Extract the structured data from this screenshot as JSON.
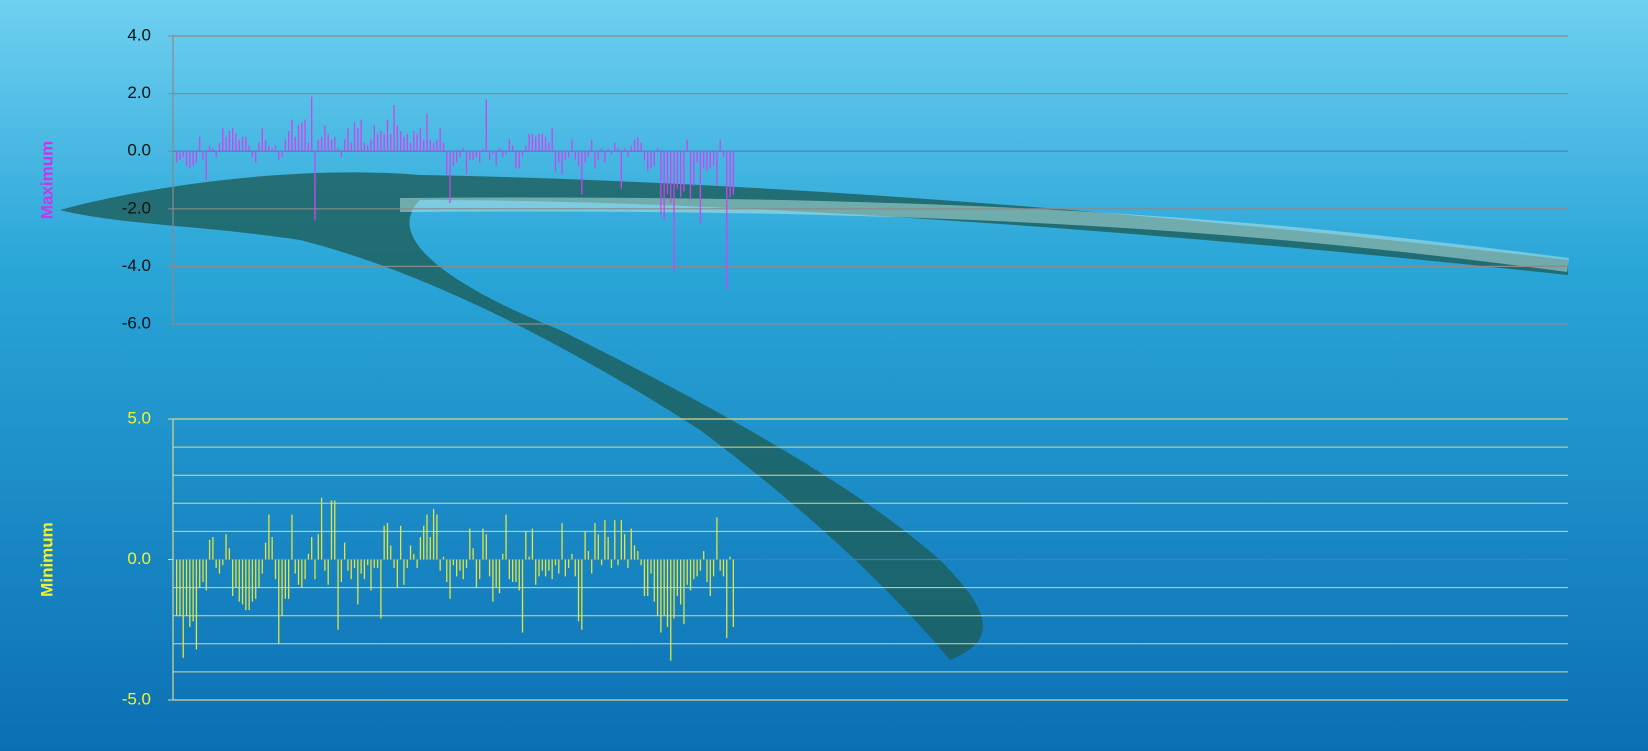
{
  "chart_data": [
    {
      "type": "bar",
      "ylabel": "Maximum",
      "color": "#cc44ee",
      "label_color": "#111111",
      "grid": true,
      "grid_color": "#8a8a8a",
      "ylim": [
        -6,
        4
      ],
      "yticks": [
        {
          "value": 4,
          "label": "4.0"
        },
        {
          "value": 2,
          "label": "2.0"
        },
        {
          "value": 0,
          "label": "0.0"
        },
        {
          "value": -2,
          "label": "-2.0"
        },
        {
          "value": -4,
          "label": "-4.0"
        },
        {
          "value": -6,
          "label": "-6.0"
        }
      ],
      "values": [
        -0.4,
        -0.3,
        -0.2,
        -0.5,
        -0.6,
        -0.5,
        -0.4,
        0.5,
        -0.3,
        -1.0,
        0.2,
        0.1,
        -0.2,
        0.3,
        0.8,
        0.5,
        0.7,
        0.8,
        0.6,
        0.4,
        0.5,
        0.5,
        0.2,
        -0.2,
        -0.4,
        0.3,
        0.8,
        0.4,
        0.2,
        0.1,
        0.2,
        -0.3,
        -0.2,
        0.4,
        0.7,
        1.1,
        0.5,
        0.9,
        1.0,
        1.1,
        0.3,
        1.9,
        -2.4,
        0.4,
        0.5,
        0.9,
        0.6,
        0.4,
        0.5,
        0.1,
        -0.2,
        0.4,
        0.8,
        0.3,
        1.0,
        0.8,
        1.1,
        0.3,
        0.2,
        0.4,
        0.9,
        0.6,
        0.7,
        0.6,
        1.1,
        0.6,
        1.6,
        0.9,
        0.7,
        0.5,
        0.6,
        0.3,
        0.7,
        0.6,
        0.8,
        0.4,
        1.3,
        0.4,
        0.3,
        0.4,
        0.8,
        0.3,
        -0.8,
        -1.8,
        -0.5,
        -0.4,
        -0.2,
        0.1,
        -0.8,
        -0.3,
        -0.3,
        -0.2,
        -0.4,
        0.1,
        1.8,
        -0.3,
        -0.1,
        -0.5,
        0.1,
        -0.2,
        -0.1,
        0.4,
        0.2,
        -0.6,
        -0.6,
        -0.2,
        0.2,
        0.6,
        0.6,
        0.5,
        0.6,
        0.6,
        0.5,
        0.3,
        0.8,
        -0.7,
        -0.4,
        -0.8,
        -0.3,
        -0.2,
        0.4,
        -0.3,
        -0.5,
        -1.5,
        -0.4,
        -0.2,
        0.4,
        -0.6,
        -0.3,
        0.1,
        -0.4,
        0.1,
        -0.1,
        0.3,
        0.1,
        -1.3,
        0.1,
        -0.2,
        0.2,
        0.4,
        0.5,
        0.3,
        -0.3,
        -0.7,
        -0.6,
        -0.5,
        0.1,
        -2.2,
        -2.4,
        -1.5,
        -1.8,
        -4.2,
        -1.3,
        -1.6,
        -1.4,
        0.4,
        -1.7,
        -1.2,
        -0.4,
        -2.5,
        -0.6,
        -0.7,
        -0.6,
        -0.5,
        -1.2,
        0.4,
        -0.2,
        -4.8,
        -1.6,
        -1.5
      ]
    },
    {
      "type": "bar",
      "ylabel": "Minimum",
      "color": "#e4e43a",
      "label_color": "#f2f230",
      "grid": true,
      "grid_color": "#d8d890",
      "ylim": [
        -5,
        5
      ],
      "yticks": [
        {
          "value": 5,
          "label": "5.0"
        },
        {
          "value": 0,
          "label": "0.0"
        },
        {
          "value": -5,
          "label": "-5.0"
        }
      ],
      "minor_yticks": [
        4,
        3,
        2,
        1,
        -1,
        -2,
        -3,
        -4
      ],
      "values": [
        -2.0,
        -2.0,
        -3.5,
        -2.0,
        -2.4,
        -2.2,
        -3.2,
        -1.0,
        -0.8,
        -1.1,
        0.7,
        0.8,
        -0.3,
        -0.5,
        -0.2,
        0.9,
        0.4,
        -1.3,
        -1.0,
        -1.5,
        -1.6,
        -1.8,
        -1.8,
        -1.5,
        -1.4,
        -1.0,
        -0.5,
        0.6,
        1.6,
        0.8,
        -0.7,
        -3.0,
        -2.0,
        -1.4,
        -1.4,
        1.6,
        -0.5,
        -0.9,
        -1.0,
        -0.7,
        0.2,
        0.8,
        -0.7,
        0.9,
        2.2,
        -0.4,
        -0.9,
        2.1,
        2.1,
        -2.5,
        -0.8,
        0.6,
        -0.4,
        -0.7,
        -0.3,
        -1.6,
        -0.5,
        -0.7,
        -0.2,
        -1.1,
        -0.3,
        -0.3,
        -2.1,
        1.2,
        1.3,
        0.5,
        -0.3,
        -1.0,
        1.2,
        -0.9,
        -0.3,
        0.5,
        0.2,
        -0.3,
        0.8,
        1.2,
        1.6,
        0.8,
        1.8,
        1.6,
        -0.4,
        0.1,
        -0.8,
        -1.4,
        -0.2,
        -0.6,
        -0.4,
        -0.7,
        -0.3,
        1.1,
        0.4,
        -1.0,
        -0.7,
        1.1,
        0.9,
        -0.6,
        -1.5,
        -1.0,
        -1.2,
        0.2,
        1.6,
        -0.7,
        -0.8,
        -0.8,
        -1.1,
        -2.6,
        1.0,
        0.1,
        1.1,
        -0.9,
        -0.6,
        -0.4,
        -0.6,
        -0.4,
        -0.7,
        -0.2,
        -0.5,
        1.3,
        -0.6,
        -0.3,
        0.2,
        -0.6,
        -2.2,
        -2.5,
        1.0,
        0.3,
        -0.5,
        1.3,
        0.9,
        -0.2,
        1.4,
        0.8,
        -0.3,
        1.4,
        -0.2,
        1.4,
        0.9,
        -0.3,
        1.1,
        0.5,
        0.3,
        -0.2,
        -1.3,
        -1.3,
        -0.5,
        -1.5,
        -2.0,
        -2.6,
        -2.0,
        -2.4,
        -3.6,
        -2.1,
        -1.3,
        -1.6,
        -2.3,
        -0.9,
        -1.1,
        -0.7,
        -0.6,
        -0.4,
        0.3,
        -0.8,
        -1.3,
        -0.6,
        1.5,
        -0.4,
        -0.6,
        -2.8,
        0.1,
        -2.4
      ]
    }
  ]
}
